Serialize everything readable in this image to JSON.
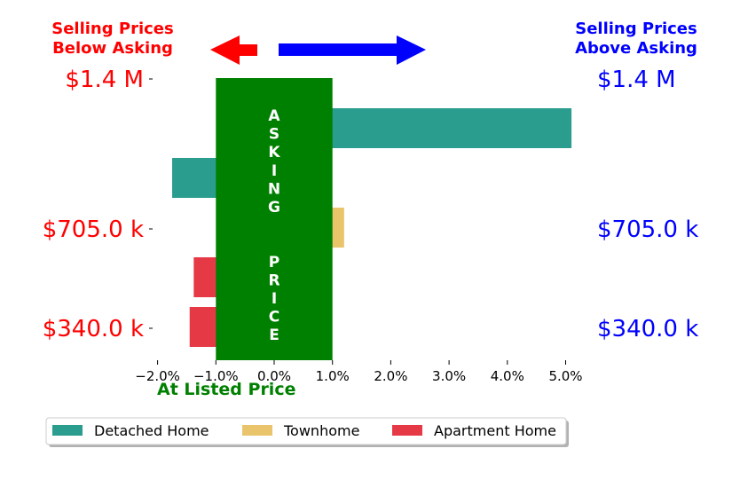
{
  "header": {
    "left_line1": "Selling Prices",
    "left_line2": "Below Asking",
    "right_line1": "Selling Prices",
    "right_line2": "Above Asking",
    "left_color": "#ff0000",
    "right_color": "#0000ff"
  },
  "asking_band": {
    "text": "ASKING  PRICE",
    "color": "#008000",
    "x_range": [
      -1.0,
      1.0
    ]
  },
  "bottom_label": "At Listed Price",
  "chart_data": {
    "type": "bar",
    "orientation": "horizontal",
    "x_ticks": [
      "−2.0%",
      "−1.0%",
      "0.0%",
      "1.0%",
      "2.0%",
      "3.0%",
      "4.0%",
      "5.0%"
    ],
    "x_tick_values": [
      -2,
      -1,
      0,
      1,
      2,
      3,
      4,
      5
    ],
    "xlim": [
      -2.0,
      5.3
    ],
    "y_tick_labels_left": [
      "$1.4 M",
      "$705.0 k",
      "$340.0 k"
    ],
    "y_tick_labels_right": [
      "$1.4 M",
      "$705.0 k",
      "$340.0 k"
    ],
    "bars": [
      {
        "series": "Detached Home",
        "value": 5.1
      },
      {
        "series": "Detached Home",
        "value": -1.75
      },
      {
        "series": "Townhome",
        "value": 1.2
      },
      {
        "series": "Apartment Home",
        "value": -1.38
      },
      {
        "series": "Apartment Home",
        "value": -1.45
      }
    ],
    "series": [
      {
        "name": "Detached Home",
        "color": "#2a9d8f"
      },
      {
        "name": "Townhome",
        "color": "#e9c46a"
      },
      {
        "name": "Apartment Home",
        "color": "#e63946"
      }
    ],
    "legend_position": "bottom"
  }
}
